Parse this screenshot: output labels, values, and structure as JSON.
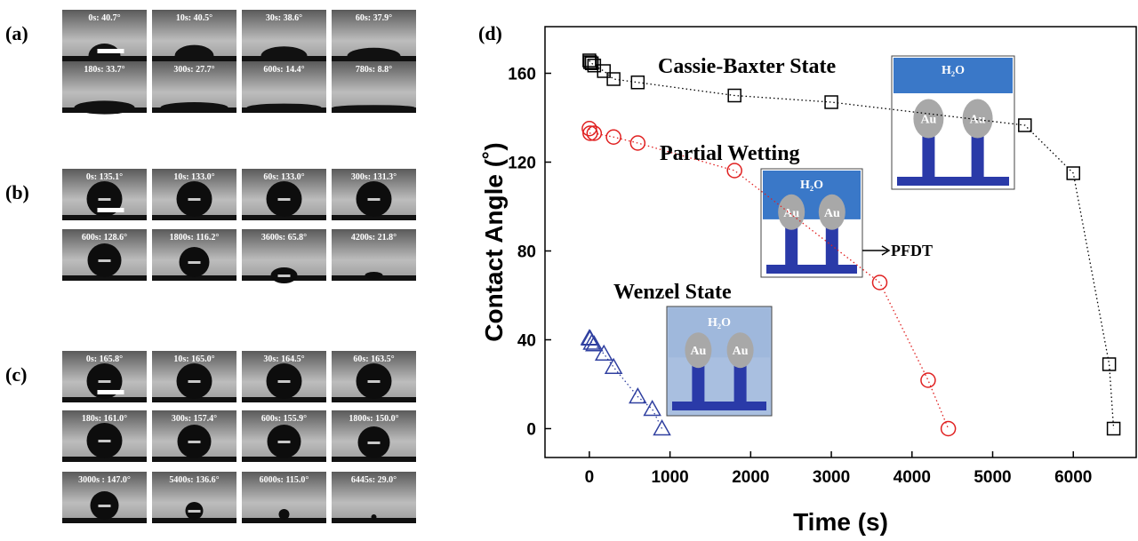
{
  "panels": [
    {
      "label": "(a)",
      "frames": [
        "0s: 40.7°",
        "10s: 40.5°",
        "30s: 38.6°",
        "60s: 37.9°",
        "180s: 33.7°",
        "300s: 27.7°",
        "600s: 14.4°",
        "780s: 8.8°"
      ]
    },
    {
      "label": "(b)",
      "frames": [
        "0s: 135.1°",
        "10s: 133.0°",
        "60s: 133.0°",
        "300s: 131.3°",
        "600s: 128.6°",
        "1800s: 116.2°",
        "3600s: 65.8°",
        "4200s: 21.8°"
      ]
    },
    {
      "label": "(c)",
      "frames": [
        "0s: 165.8°",
        "10s: 165.0°",
        "30s: 164.5°",
        "60s: 163.5°",
        "180s: 161.0°",
        "300s: 157.4°",
        "600s: 155.9°",
        "1800s: 150.0°",
        "3000s : 147.0°",
        "5400s: 136.6°",
        "6000s: 115.0°",
        "6445s: 29.0°"
      ]
    }
  ],
  "chart_data": {
    "type": "scatter",
    "panel_label": "(d)",
    "xlabel": "Time (s)",
    "ylabel": "Contact Angle (˚)",
    "xlim": [
      -550,
      6780
    ],
    "ylim": [
      -13,
      181
    ],
    "xticks": [
      0,
      1000,
      2000,
      3000,
      4000,
      5000,
      6000
    ],
    "yticks": [
      0,
      40,
      80,
      120,
      160
    ],
    "series": [
      {
        "name": "Cassie-Baxter State",
        "color": "#000000",
        "marker": "square",
        "x": [
          0,
          10,
          30,
          60,
          180,
          300,
          600,
          1800,
          3000,
          5400,
          6000,
          6445,
          6500
        ],
        "values": [
          165.8,
          165.0,
          164.5,
          163.5,
          161.0,
          157.4,
          155.9,
          150.0,
          147.0,
          136.6,
          115.0,
          29.0,
          0
        ]
      },
      {
        "name": "Partial Wetting",
        "color": "#e02020",
        "marker": "circle",
        "x": [
          0,
          10,
          60,
          300,
          600,
          1800,
          3600,
          4200,
          4450
        ],
        "values": [
          135.1,
          133.0,
          133.0,
          131.3,
          128.6,
          116.2,
          65.8,
          21.8,
          0
        ]
      },
      {
        "name": "Wenzel State",
        "color": "#3040a0",
        "marker": "triangle",
        "x": [
          0,
          10,
          30,
          60,
          180,
          300,
          600,
          780,
          900
        ],
        "values": [
          40.7,
          40.5,
          38.6,
          37.9,
          33.7,
          27.7,
          14.4,
          8.8,
          0
        ]
      }
    ],
    "insets": [
      {
        "water": "H₂O",
        "particles": [
          "Au",
          "Au"
        ]
      },
      {
        "water": "H₂O",
        "particles": [
          "Au",
          "Au"
        ],
        "note": "PFDT"
      },
      {
        "water": "H₂O",
        "particles": [
          "Au",
          "Au"
        ]
      }
    ]
  }
}
